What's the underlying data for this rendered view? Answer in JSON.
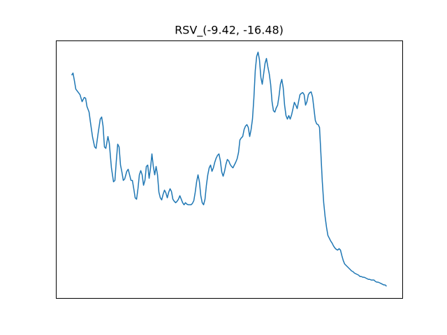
{
  "chart_data": {
    "type": "line",
    "title": "RSV_(-9.42, -16.48)",
    "x": [
      0,
      2,
      4,
      6,
      9,
      12,
      15,
      18,
      20,
      22,
      25,
      27,
      30,
      33,
      35,
      38,
      41,
      43,
      45,
      47,
      49,
      52,
      54,
      57,
      60,
      62,
      64,
      66,
      68,
      70,
      72,
      74,
      76,
      79,
      81,
      83,
      85,
      87,
      89,
      91,
      93,
      95,
      97,
      99,
      101,
      103,
      105,
      107,
      109,
      111,
      113,
      115,
      117,
      119,
      121,
      123,
      125,
      127,
      129,
      131,
      133,
      135,
      137,
      139,
      141,
      143,
      145,
      147,
      149,
      151,
      153,
      155,
      157,
      159,
      161,
      163,
      165,
      167,
      169,
      171,
      173,
      175,
      177,
      179,
      181,
      183,
      185,
      187,
      189,
      191,
      193,
      195,
      197,
      199,
      201,
      203,
      205,
      207,
      209,
      211,
      213,
      215,
      217,
      219,
      221,
      223,
      225,
      227,
      229,
      231,
      233,
      235,
      237,
      239,
      241,
      243,
      245,
      247,
      249,
      251,
      253,
      255,
      257,
      259,
      261,
      263,
      265,
      267,
      269,
      271,
      273,
      275,
      277,
      279,
      281,
      283,
      285,
      287,
      289,
      291,
      293,
      295,
      297,
      299,
      301,
      303,
      305,
      307,
      309,
      311,
      313,
      315,
      317,
      319,
      321,
      323,
      325,
      327,
      329,
      331,
      333,
      335,
      337,
      339,
      341,
      343,
      345,
      347,
      349,
      351,
      353,
      355,
      357,
      359,
      361,
      363,
      365,
      367,
      369,
      371,
      373,
      375,
      377,
      379,
      381,
      383,
      385,
      387,
      389,
      391,
      393,
      395,
      397,
      399,
      401,
      403,
      405,
      407,
      409,
      411,
      413,
      415,
      417,
      419,
      421,
      423,
      425,
      427,
      429,
      431,
      433,
      435,
      437,
      439,
      441,
      443,
      445,
      447,
      449,
      451
    ],
    "series": [
      {
        "color": "#1f77b4",
        "values": [
          303,
          306,
          295,
          283,
          279,
          275,
          265,
          271,
          270,
          258,
          250,
          235,
          214,
          200,
          198,
          220,
          240,
          243,
          230,
          200,
          198,
          215,
          205,
          170,
          150,
          152,
          180,
          204,
          200,
          174,
          164,
          152,
          154,
          165,
          168,
          160,
          152,
          152,
          140,
          127,
          125,
          140,
          160,
          166,
          160,
          145,
          152,
          172,
          174,
          155,
          170,
          190,
          172,
          160,
          172,
          160,
          135,
          127,
          124,
          132,
          138,
          134,
          127,
          135,
          140,
          136,
          125,
          122,
          120,
          122,
          125,
          130,
          125,
          120,
          117,
          120,
          118,
          117,
          117,
          117,
          119,
          123,
          135,
          150,
          160,
          150,
          130,
          120,
          117,
          125,
          145,
          160,
          170,
          174,
          165,
          170,
          178,
          184,
          188,
          190,
          180,
          164,
          158,
          165,
          175,
          182,
          180,
          175,
          172,
          170,
          174,
          178,
          183,
          192,
          210,
          213,
          215,
          225,
          230,
          232,
          228,
          215,
          225,
          240,
          270,
          310,
          330,
          336,
          325,
          300,
          290,
          305,
          320,
          327,
          315,
          305,
          290,
          265,
          252,
          250,
          256,
          260,
          273,
          290,
          297,
          285,
          260,
          245,
          240,
          245,
          240,
          246,
          255,
          264,
          260,
          255,
          265,
          275,
          277,
          278,
          275,
          260,
          265,
          275,
          278,
          279,
          272,
          255,
          238,
          233,
          232,
          228,
          190,
          150,
          120,
          100,
          85,
          73,
          69,
          65,
          62,
          58,
          55,
          53,
          52,
          54,
          52,
          44,
          37,
          32,
          30,
          28,
          26,
          24,
          22,
          21,
          19,
          18,
          17,
          16,
          14,
          14,
          13,
          13,
          12,
          11,
          10,
          10,
          9,
          9,
          9,
          7,
          6,
          6,
          5,
          4,
          3,
          2,
          2,
          0
        ]
      }
    ],
    "xlim": [
      -22.55,
      473.55
    ],
    "ylim": [
      -16.8,
      352.8
    ]
  }
}
